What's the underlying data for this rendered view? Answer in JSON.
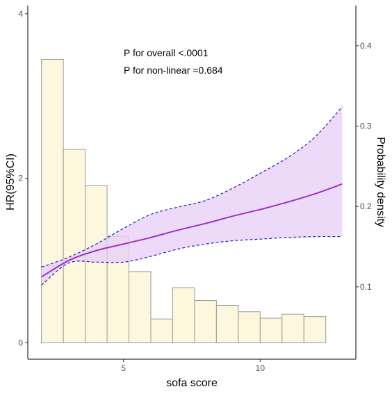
{
  "chart_data": {
    "type": "line",
    "x_label": "sofa score",
    "y_label": "HR(95%CI)",
    "y2_label": "Probability density",
    "annotations": [
      "P for overall <.0001",
      "P for non-linear =0.684"
    ],
    "x_ticks": [
      5,
      10
    ],
    "y_ticks": [
      0,
      2,
      4
    ],
    "y2_ticks": [
      0.1,
      0.2,
      0.3,
      0.4
    ],
    "x_lim": [
      1.5,
      13.5
    ],
    "y_lim": [
      -0.2,
      4.1
    ],
    "y2_lim": [
      0.01,
      0.45
    ],
    "grid": false,
    "histogram": {
      "bin_width": 0.8,
      "bin_starts": [
        2.0,
        2.8,
        3.6,
        4.4,
        5.2,
        6.0,
        6.8,
        7.6,
        8.4,
        9.2,
        10.0,
        10.8,
        11.6
      ],
      "densities": [
        0.383,
        0.271,
        0.226,
        0.163,
        0.119,
        0.06,
        0.099,
        0.083,
        0.077,
        0.069,
        0.061,
        0.066,
        0.063
      ],
      "fill": "#fdf7dd",
      "stroke": "#9a9a9a"
    },
    "hr_curve": {
      "x": [
        2.0,
        3.0,
        4.0,
        5.0,
        6.0,
        7.0,
        8.0,
        9.0,
        10.0,
        11.0,
        12.0,
        13.0
      ],
      "hr": [
        0.8,
        1.0,
        1.12,
        1.2,
        1.28,
        1.37,
        1.45,
        1.54,
        1.62,
        1.71,
        1.81,
        1.93
      ],
      "lower": [
        0.7,
        0.97,
        0.98,
        0.98,
        1.05,
        1.14,
        1.2,
        1.24,
        1.26,
        1.28,
        1.29,
        1.29
      ],
      "upper": [
        0.92,
        1.04,
        1.2,
        1.39,
        1.56,
        1.65,
        1.73,
        1.88,
        2.06,
        2.25,
        2.5,
        2.87
      ],
      "line_color": "#9932cc",
      "band_color": "#e7cdf7",
      "ci_line_color": "#1e1ec8"
    }
  }
}
